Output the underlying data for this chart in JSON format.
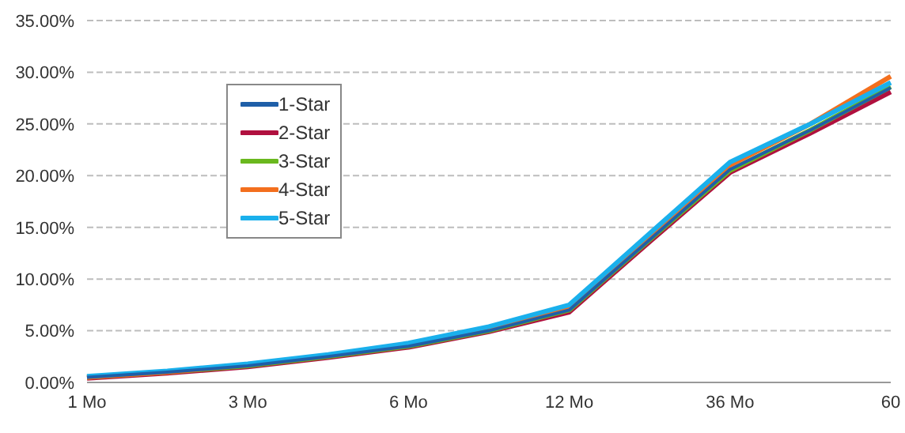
{
  "chart_data": {
    "type": "line",
    "categories": [
      "1 Mo",
      null,
      "3 Mo",
      null,
      "6 Mo",
      null,
      "12 Mo",
      null,
      "36 Mo",
      null,
      "60"
    ],
    "series": [
      {
        "name": "1-Star",
        "color": "#1f5fa8",
        "values": [
          0.5,
          1.0,
          1.6,
          2.5,
          3.5,
          5.0,
          7.0,
          13.8,
          20.6,
          24.4,
          28.5
        ]
      },
      {
        "name": "2-Star",
        "color": "#b0103f",
        "values": [
          0.4,
          0.9,
          1.5,
          2.4,
          3.4,
          4.9,
          6.8,
          13.6,
          20.3,
          24.1,
          28.1
        ]
      },
      {
        "name": "3-Star",
        "color": "#6ab81e",
        "values": [
          0.5,
          1.0,
          1.6,
          2.5,
          3.5,
          5.0,
          7.0,
          13.8,
          20.5,
          24.4,
          28.6
        ]
      },
      {
        "name": "4-Star",
        "color": "#f36f1e",
        "values": [
          0.5,
          1.0,
          1.7,
          2.6,
          3.6,
          5.2,
          7.2,
          14.1,
          21.0,
          25.0,
          29.6
        ]
      },
      {
        "name": "5-Star",
        "color": "#1ab0ec",
        "values": [
          0.6,
          1.1,
          1.8,
          2.7,
          3.8,
          5.4,
          7.5,
          14.4,
          21.3,
          25.0,
          29.0
        ]
      }
    ],
    "ylim": [
      0,
      35
    ],
    "yticks": [
      {
        "value": 0,
        "label": "0.00%"
      },
      {
        "value": 5,
        "label": "5.00%"
      },
      {
        "value": 10,
        "label": "10.00%"
      },
      {
        "value": 15,
        "label": "15.00%"
      },
      {
        "value": 20,
        "label": "20.00%"
      },
      {
        "value": 25,
        "label": "25.00%"
      },
      {
        "value": 30,
        "label": "30.00%"
      },
      {
        "value": 35,
        "label": "35.00%"
      }
    ],
    "grid": "y",
    "legend": "top left",
    "marker": "none",
    "line_style": "solid"
  }
}
